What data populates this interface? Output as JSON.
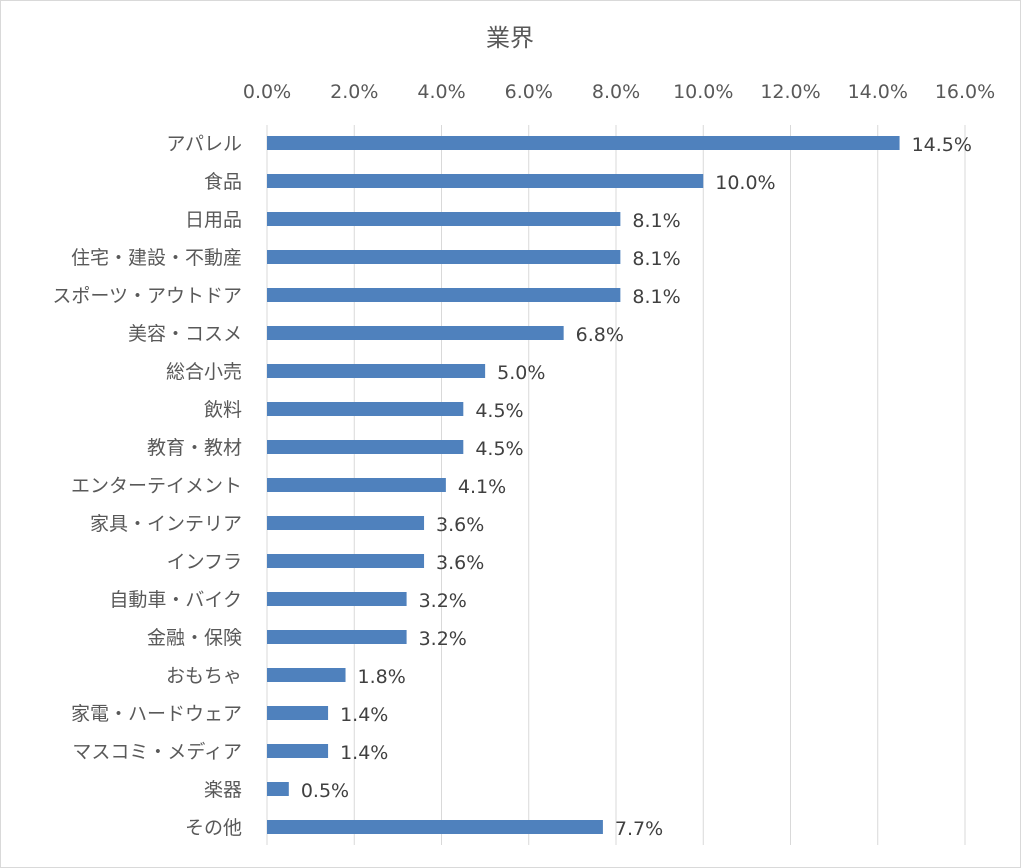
{
  "chart_data": {
    "type": "bar",
    "orientation": "horizontal",
    "title": "業界",
    "xlabel": "",
    "ylabel": "",
    "xlim": [
      0,
      16
    ],
    "x_ticks": [
      "0.0%",
      "2.0%",
      "4.0%",
      "6.0%",
      "8.0%",
      "10.0%",
      "12.0%",
      "14.0%",
      "16.0%"
    ],
    "grid": true,
    "legend": "none",
    "bar_color": "#4f81bd",
    "categories": [
      "アパレル",
      "食品",
      "日用品",
      "住宅・建設・不動産",
      "スポーツ・アウトドア",
      "美容・コスメ",
      "総合小売",
      "飲料",
      "教育・教材",
      "エンターテイメント",
      "家具・インテリア",
      "インフラ",
      "自動車・バイク",
      "金融・保険",
      "おもちゃ",
      "家電・ハードウェア",
      "マスコミ・メディア",
      "楽器",
      "その他"
    ],
    "values": [
      14.5,
      10.0,
      8.1,
      8.1,
      8.1,
      6.8,
      5.0,
      4.5,
      4.5,
      4.1,
      3.6,
      3.6,
      3.2,
      3.2,
      1.8,
      1.4,
      1.4,
      0.5,
      7.7
    ],
    "data_labels": [
      "14.5%",
      "10.0%",
      "8.1%",
      "8.1%",
      "8.1%",
      "6.8%",
      "5.0%",
      "4.5%",
      "4.5%",
      "4.1%",
      "3.6%",
      "3.6%",
      "3.2%",
      "3.2%",
      "1.8%",
      "1.4%",
      "1.4%",
      "0.5%",
      "7.7%"
    ]
  }
}
